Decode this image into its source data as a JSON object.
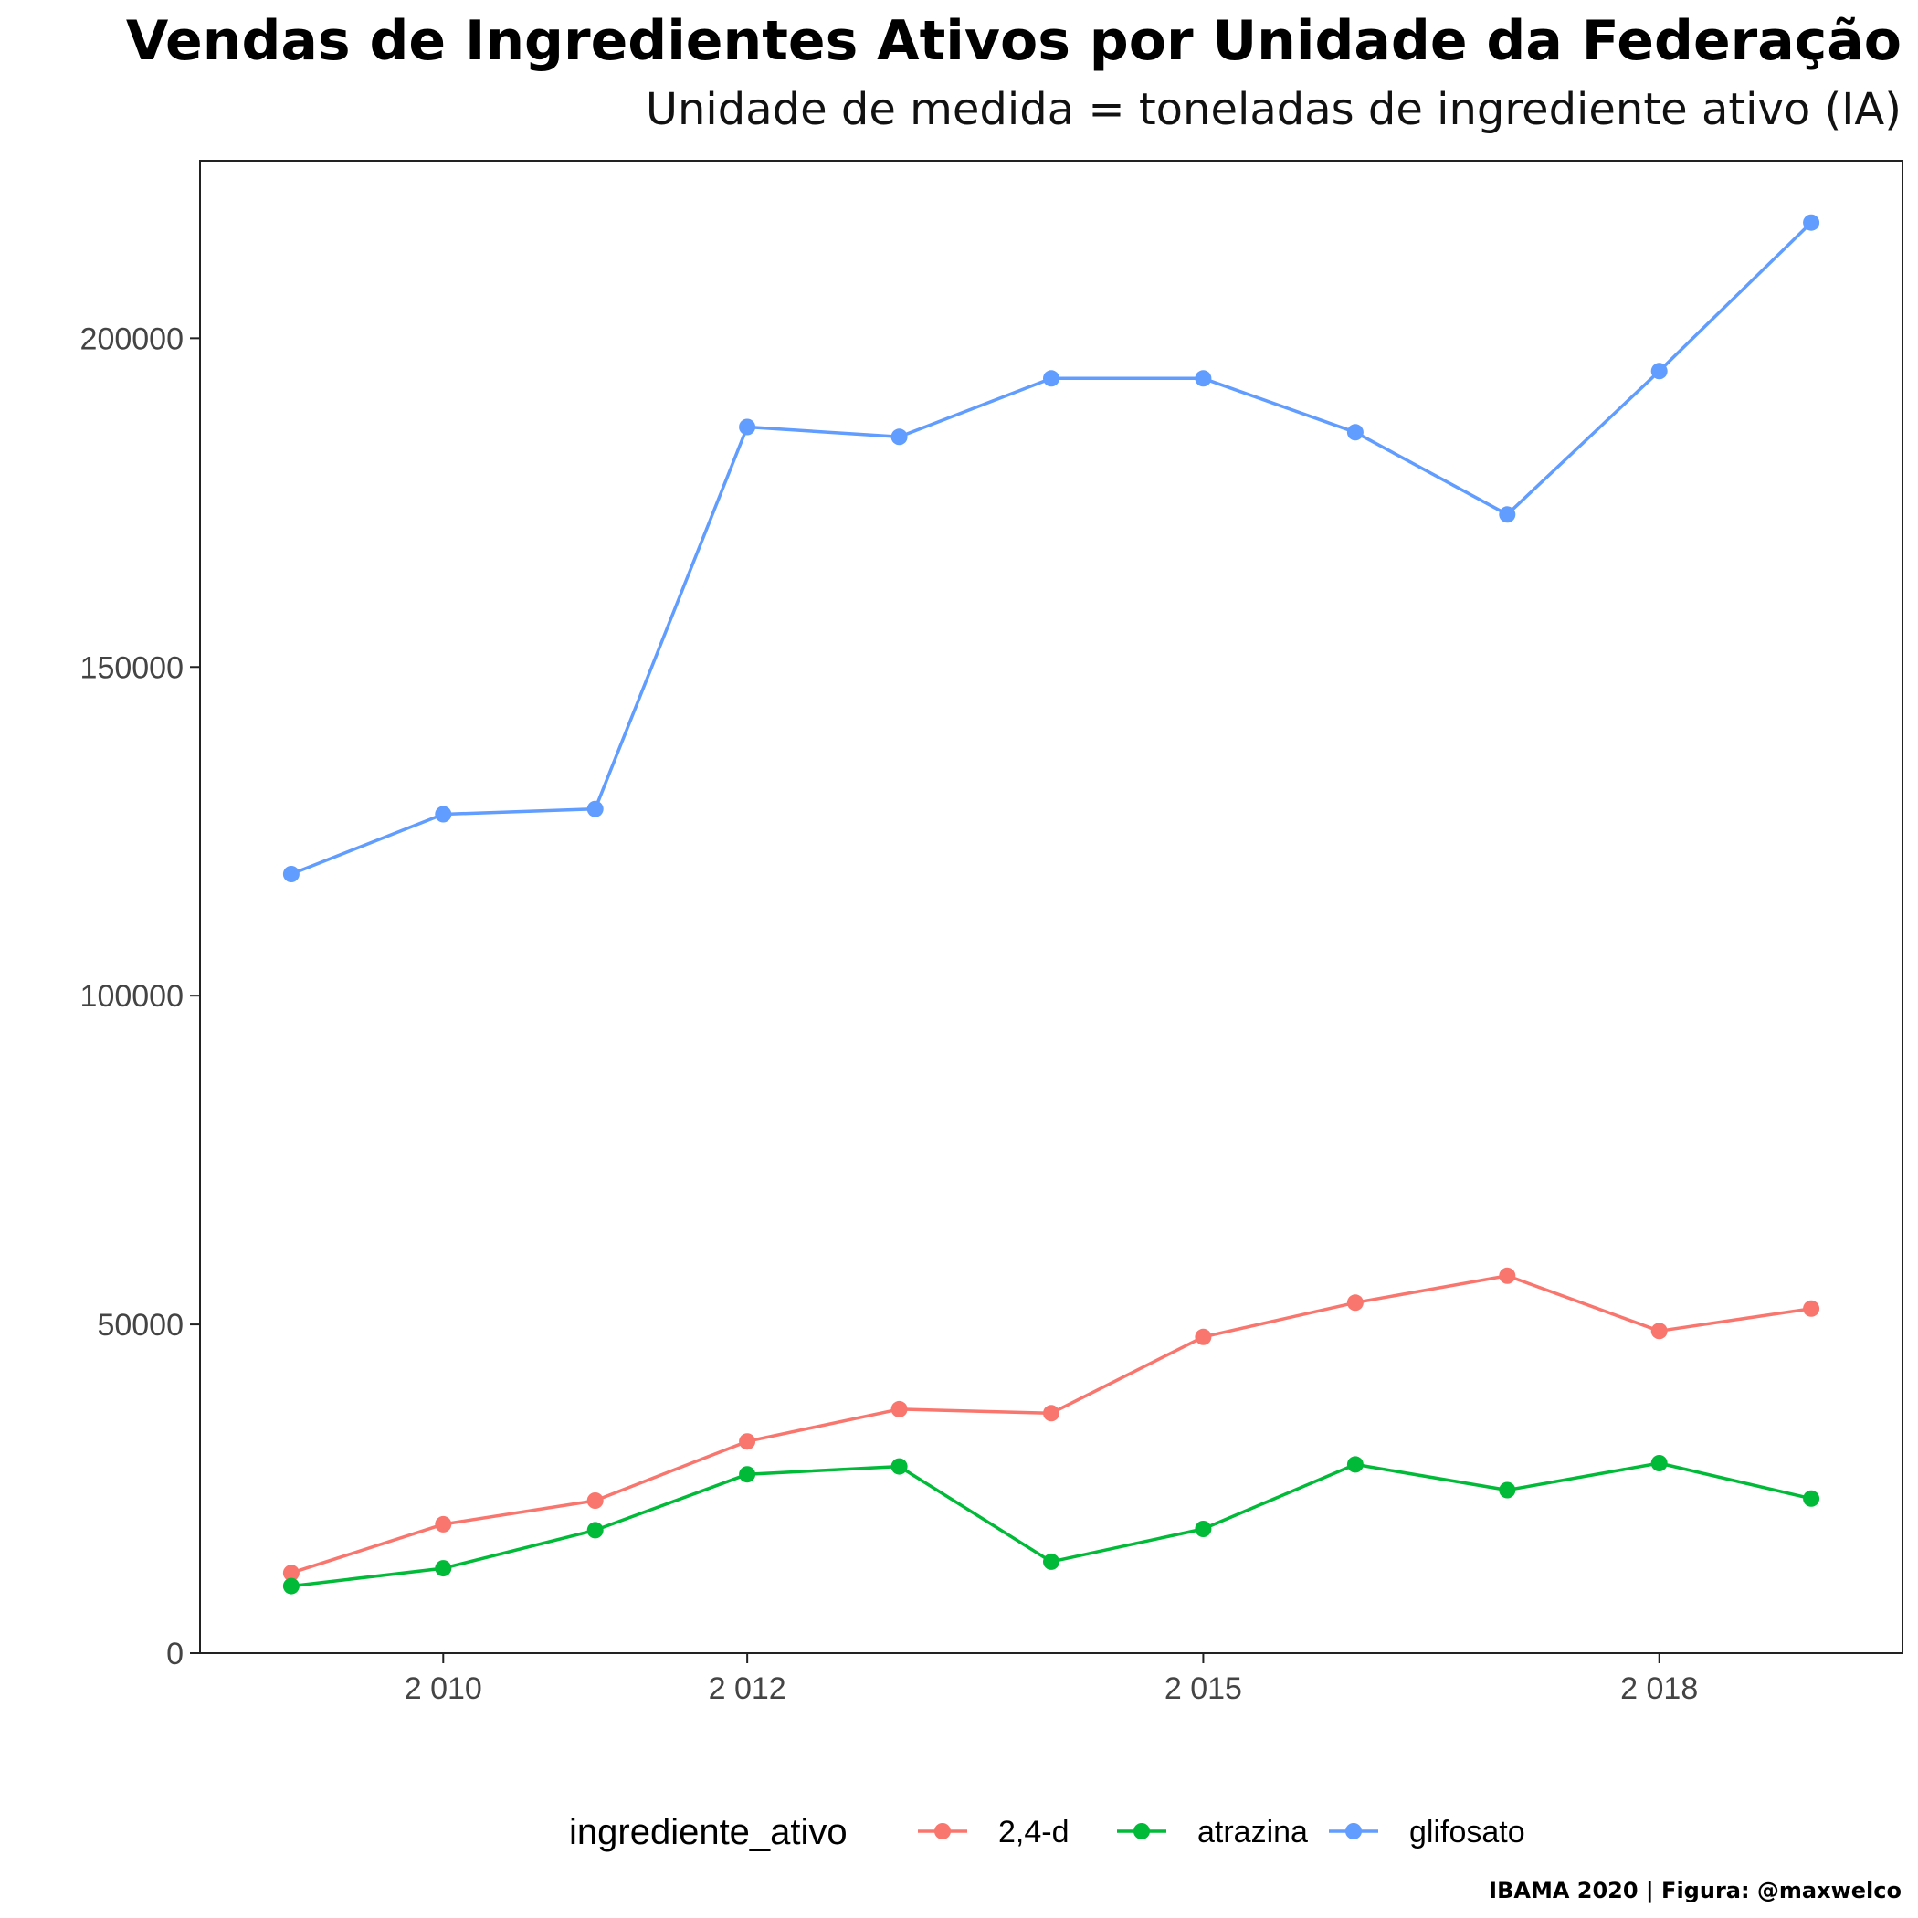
{
  "chart_data": {
    "type": "line",
    "title": "Vendas de Ingredientes Ativos por Unidade da Federação",
    "subtitle": "Unidade de medida = toneladas de ingrediente ativo (IA)",
    "caption": "IBAMA 2020 | Figura: @maxwelco",
    "xlabel": "",
    "ylabel": "",
    "x": [
      2009,
      2010,
      2011,
      2012,
      2013,
      2014,
      2015,
      2016,
      2017,
      2018,
      2019
    ],
    "x_ticks": [
      2010,
      2012,
      2015,
      2018
    ],
    "x_tick_labels": [
      "2 010",
      "2 012",
      "2 015",
      "2 018"
    ],
    "xlim": [
      2008.4,
      2019.6
    ],
    "ylim": [
      0,
      227000
    ],
    "y_ticks": [
      0,
      50000,
      100000,
      150000,
      200000
    ],
    "y_tick_labels": [
      "0",
      "50000",
      "100000",
      "150000",
      "200000"
    ],
    "grid": false,
    "legend": {
      "title": "ingrediente_ativo",
      "position": "bottom"
    },
    "series": [
      {
        "name": "2,4-d",
        "color": "#F8766D",
        "values": [
          12200,
          19600,
          23200,
          32200,
          37100,
          36500,
          48100,
          53300,
          57400,
          49000,
          52400
        ]
      },
      {
        "name": "atrazina",
        "color": "#00BA38",
        "values": [
          10200,
          12900,
          18700,
          27200,
          28400,
          13900,
          18900,
          28700,
          24800,
          28900,
          23500
        ]
      },
      {
        "name": "glifosato",
        "color": "#619CFF",
        "values": [
          118500,
          127600,
          128400,
          186500,
          185000,
          193900,
          193900,
          185700,
          173200,
          195000,
          217600
        ]
      }
    ]
  }
}
